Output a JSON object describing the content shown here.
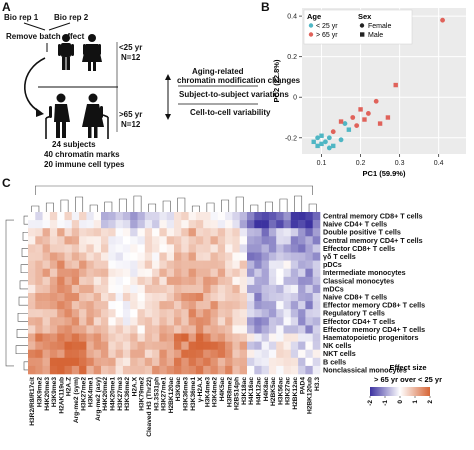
{
  "panels": {
    "a": "A",
    "b": "B",
    "c": "C"
  },
  "diagram": {
    "bio_rep_1": "Bio rep 1",
    "bio_rep_2": "Bio rep 2",
    "remove_batch": "Remove batch effect",
    "young_age": "<25 yr",
    "young_n": "N=12",
    "old_age": ">65 yr",
    "old_n": "N=12",
    "summary": [
      "24 subjects",
      "40 chromatin marks",
      "20 immune cell types"
    ],
    "changes": [
      "Aging-related",
      "chromatin modification changes",
      "Subject-to-subject variations",
      "Cell-to-cell variability"
    ]
  },
  "chart_data": [
    {
      "type": "scatter",
      "xlabel": "PC1 (59.9%)",
      "ylabel": "PC2 (22.8%)",
      "xlim": [
        0.05,
        0.47
      ],
      "ylim": [
        -0.28,
        0.44
      ],
      "xticks": [
        "0.1",
        "0.2",
        "0.3",
        "0.4"
      ],
      "yticks": [
        "-0.2",
        "0",
        "0.2",
        "0.4"
      ],
      "grid": true,
      "legend_position": "top-left",
      "legend": {
        "age_title": "Age",
        "sex_title": "Sex",
        "age_items": [
          {
            "label": "< 25 yr",
            "color": "#4fb6c4"
          },
          {
            "label": "> 65 yr",
            "color": "#e0625a"
          }
        ],
        "sex_items": [
          {
            "label": "Female",
            "shape": "circle"
          },
          {
            "label": "Male",
            "shape": "square"
          }
        ]
      },
      "series": [
        {
          "name": "< 25 yr",
          "color": "#4fb6c4",
          "points": [
            [
              0.08,
              -0.22
            ],
            [
              0.09,
              -0.2
            ],
            [
              0.1,
              -0.19
            ],
            [
              0.11,
              -0.22
            ],
            [
              0.1,
              -0.23
            ],
            [
              0.12,
              -0.2
            ],
            [
              0.13,
              -0.24
            ],
            [
              0.15,
              -0.21
            ],
            [
              0.09,
              -0.24
            ],
            [
              0.16,
              -0.13
            ],
            [
              0.17,
              -0.16
            ],
            [
              0.12,
              -0.25
            ]
          ]
        },
        {
          "name": "> 65 yr",
          "color": "#e0625a",
          "points": [
            [
              0.41,
              0.38
            ],
            [
              0.29,
              0.06
            ],
            [
              0.24,
              -0.02
            ],
            [
              0.2,
              -0.06
            ],
            [
              0.22,
              -0.08
            ],
            [
              0.27,
              -0.1
            ],
            [
              0.18,
              -0.1
            ],
            [
              0.15,
              -0.12
            ],
            [
              0.19,
              -0.14
            ],
            [
              0.25,
              -0.13
            ],
            [
              0.13,
              -0.17
            ],
            [
              0.21,
              -0.11
            ]
          ]
        }
      ]
    },
    {
      "type": "heatmap",
      "colorbar_title": "Effect size",
      "colorbar_subtitle": "> 65 yr over < 25 yr",
      "colorbar_ticks": [
        "-2",
        "-1",
        "0",
        "1",
        "2"
      ],
      "range": [
        -2,
        2
      ],
      "rows": [
        "Central memory CD8+ T cells",
        "Naive CD4+ T cells",
        "Double positive T cells",
        "Central memory CD4+ T cells",
        "Effector CD8+ T cells",
        "γδ T cells",
        "pDCs",
        "Intermediate monocytes",
        "Classical monocytes",
        "mDCs",
        "Naive CD8+ T cells",
        "Effector memory CD8+ T cells",
        "Regulatory T cells",
        "Effector CD4+ T cells",
        "Effector memory CD4+ T cells",
        "Haematopoietic progenitors",
        "NK cells",
        "NKT cells",
        "B cells",
        "Nonclassical monocytes"
      ],
      "columns": [
        "H3R2/R8/R17cit",
        "H3K9me2",
        "H4K20me3",
        "H3K9me3",
        "H2AK119ub",
        "H2A.Z",
        "Arg-me2 (sym)",
        "H3K27me2",
        "H3K4me1",
        "Arg-me2 (asy)",
        "H4K20me2",
        "H4K20me1",
        "H3K27me3",
        "H3K36me2",
        "H2A.X",
        "H3K79me2",
        "Cleaved H3 (Thr22)",
        "H3.3S31ph",
        "H3K27me1",
        "H2BK120ac",
        "H3K9ac",
        "H3K36me3",
        "H3K36me1",
        "γ-H2A.X",
        "H3K4me3",
        "H3K4me2",
        "H4K5ac",
        "H3R8me2",
        "H2BS14ph",
        "H3K18ac",
        "H4K16ac",
        "H4K12ac",
        "H4K8ac",
        "H2BK5ac",
        "H3K56ac",
        "H3K27ac",
        "H2BK12ac",
        "PAD4",
        "H2BK120ub",
        "H3.3"
      ]
    }
  ]
}
